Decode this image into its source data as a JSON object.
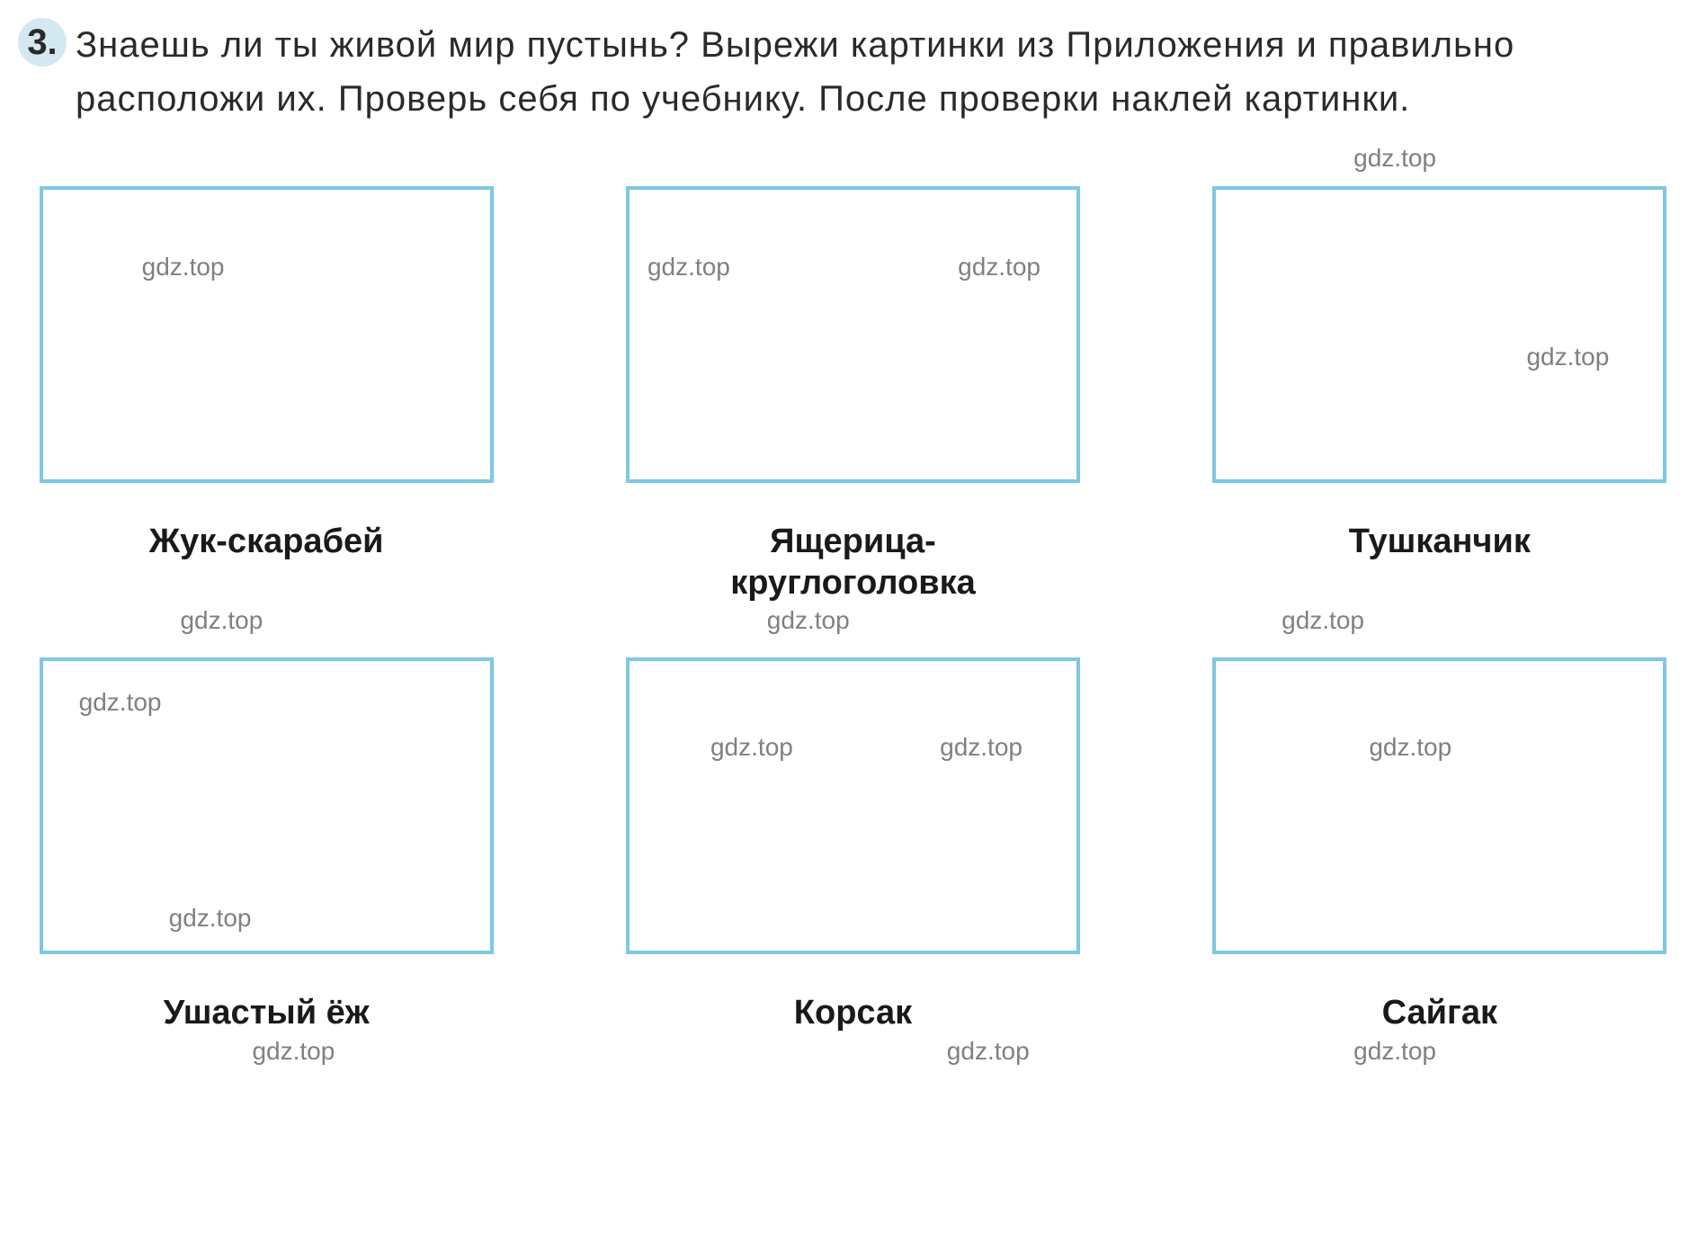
{
  "exercise": {
    "number": "3.",
    "text": "Знаешь ли ты живой мир пустынь? Вырежи картинки из Приложения и правильно расположи их. Проверь себя по учебнику. После проверки наклей картинки."
  },
  "watermark_text": "gdz.top",
  "grid": {
    "items": [
      {
        "label": "Жук-скарабей",
        "watermarks": [
          {
            "class": "wm-1-1"
          }
        ]
      },
      {
        "label": "Ящерица-круглоголовка",
        "watermarks": [
          {
            "class": "wm-2-1"
          },
          {
            "class": "wm-2-2"
          }
        ]
      },
      {
        "label": "Тушканчик",
        "watermarks": [
          {
            "class": "wm-3-1"
          }
        ]
      },
      {
        "label": "Ушастый ёж",
        "watermarks": [
          {
            "class": "wm-4-1"
          },
          {
            "class": "wm-4-2"
          }
        ]
      },
      {
        "label": "Корсак",
        "watermarks": [
          {
            "class": "wm-5-1"
          },
          {
            "class": "wm-5-2"
          }
        ]
      },
      {
        "label": "Сайгак",
        "watermarks": [
          {
            "class": "wm-6-1"
          }
        ]
      }
    ]
  },
  "colors": {
    "box_border": "#7ec8e3",
    "number_bg": "#d4e8f0",
    "text": "#2a2a2a",
    "watermark": "#808080",
    "label": "#1a1a1a",
    "background": "#ffffff"
  },
  "typography": {
    "exercise_fontsize": 40,
    "label_fontsize": 38,
    "watermark_fontsize": 28,
    "font_family": "Arial"
  }
}
